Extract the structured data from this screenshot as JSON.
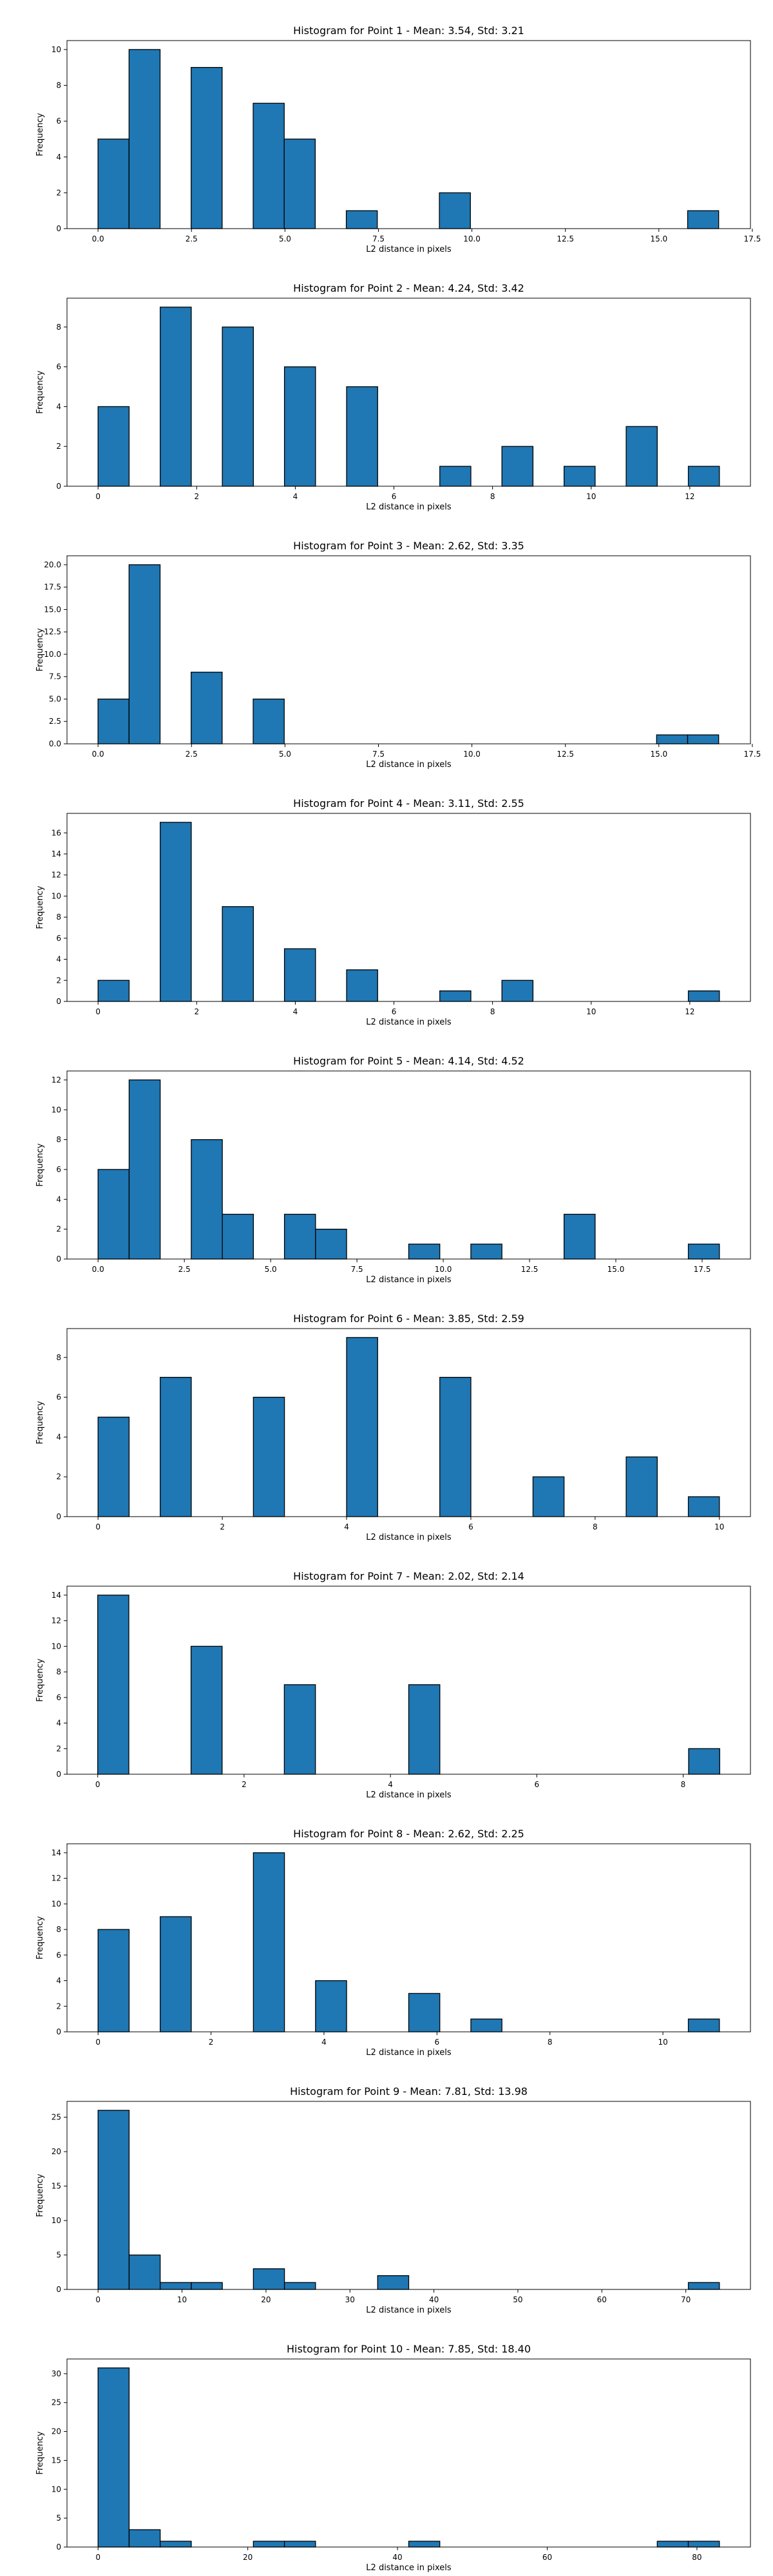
{
  "bar_color": "#1f77b4",
  "edge_color": "#000000",
  "chart_data": [
    {
      "type": "bar",
      "title": "Histogram for Point 1 - Mean: 3.54, Std: 3.21",
      "xlabel": "L2 distance in pixels",
      "ylabel": "Frequency",
      "xlim": [
        -0.83,
        17.45
      ],
      "ylim": [
        0,
        10.5
      ],
      "xticks": [
        0.0,
        2.5,
        5.0,
        7.5,
        10.0,
        12.5,
        15.0,
        17.5
      ],
      "xtick_labels": [
        "0.0",
        "2.5",
        "5.0",
        "7.5",
        "10.0",
        "12.5",
        "15.0",
        "17.5"
      ],
      "yticks": [
        0,
        2,
        4,
        6,
        8,
        10
      ],
      "ytick_labels": [
        "0",
        "2",
        "4",
        "6",
        "8",
        "10"
      ],
      "bars": [
        {
          "x0": 0.0,
          "x1": 0.83,
          "value": 5
        },
        {
          "x0": 0.83,
          "x1": 1.66,
          "value": 10
        },
        {
          "x0": 2.49,
          "x1": 3.32,
          "value": 9
        },
        {
          "x0": 4.15,
          "x1": 4.98,
          "value": 7
        },
        {
          "x0": 4.98,
          "x1": 5.81,
          "value": 5
        },
        {
          "x0": 6.64,
          "x1": 7.47,
          "value": 1
        },
        {
          "x0": 9.13,
          "x1": 9.96,
          "value": 2
        },
        {
          "x0": 15.77,
          "x1": 16.6,
          "value": 1
        }
      ]
    },
    {
      "type": "bar",
      "title": "Histogram for Point 2 - Mean: 4.24, Std: 3.42",
      "xlabel": "L2 distance in pixels",
      "ylabel": "Frequency",
      "xlim": [
        -0.63,
        13.23
      ],
      "ylim": [
        0,
        9.45
      ],
      "xticks": [
        0,
        2,
        4,
        6,
        8,
        10,
        12
      ],
      "xtick_labels": [
        "0",
        "2",
        "4",
        "6",
        "8",
        "10",
        "12"
      ],
      "yticks": [
        0,
        2,
        4,
        6,
        8
      ],
      "ytick_labels": [
        "0",
        "2",
        "4",
        "6",
        "8"
      ],
      "bars": [
        {
          "x0": 0.0,
          "x1": 0.63,
          "value": 4
        },
        {
          "x0": 1.26,
          "x1": 1.89,
          "value": 9
        },
        {
          "x0": 2.52,
          "x1": 3.15,
          "value": 8
        },
        {
          "x0": 3.78,
          "x1": 4.41,
          "value": 6
        },
        {
          "x0": 5.04,
          "x1": 5.67,
          "value": 5
        },
        {
          "x0": 6.93,
          "x1": 7.56,
          "value": 1
        },
        {
          "x0": 8.19,
          "x1": 8.82,
          "value": 2
        },
        {
          "x0": 9.45,
          "x1": 10.08,
          "value": 1
        },
        {
          "x0": 10.71,
          "x1": 11.34,
          "value": 3
        },
        {
          "x0": 11.97,
          "x1": 12.6,
          "value": 1
        }
      ]
    },
    {
      "type": "bar",
      "title": "Histogram for Point 3 - Mean: 2.62, Std: 3.35",
      "xlabel": "L2 distance in pixels",
      "ylabel": "Frequency",
      "xlim": [
        -0.83,
        17.45
      ],
      "ylim": [
        0,
        21
      ],
      "xticks": [
        0.0,
        2.5,
        5.0,
        7.5,
        10.0,
        12.5,
        15.0,
        17.5
      ],
      "xtick_labels": [
        "0.0",
        "2.5",
        "5.0",
        "7.5",
        "10.0",
        "12.5",
        "15.0",
        "17.5"
      ],
      "yticks": [
        0,
        2.5,
        5,
        7.5,
        10,
        12.5,
        15,
        17.5,
        20
      ],
      "ytick_labels": [
        "0.0",
        "2.5",
        "5.0",
        "7.5",
        "10.0",
        "12.5",
        "15.0",
        "17.5",
        "20.0"
      ],
      "bars": [
        {
          "x0": 0.0,
          "x1": 0.83,
          "value": 5
        },
        {
          "x0": 0.83,
          "x1": 1.66,
          "value": 20
        },
        {
          "x0": 2.49,
          "x1": 3.32,
          "value": 8
        },
        {
          "x0": 4.15,
          "x1": 4.98,
          "value": 5
        },
        {
          "x0": 14.94,
          "x1": 15.77,
          "value": 1
        },
        {
          "x0": 15.77,
          "x1": 16.6,
          "value": 1
        }
      ]
    },
    {
      "type": "bar",
      "title": "Histogram for Point 4 - Mean: 3.11, Std: 2.55",
      "xlabel": "L2 distance in pixels",
      "ylabel": "Frequency",
      "xlim": [
        -0.63,
        13.23
      ],
      "ylim": [
        0,
        17.85
      ],
      "xticks": [
        0,
        2,
        4,
        6,
        8,
        10,
        12
      ],
      "xtick_labels": [
        "0",
        "2",
        "4",
        "6",
        "8",
        "10",
        "12"
      ],
      "yticks": [
        0,
        2,
        4,
        6,
        8,
        10,
        12,
        14,
        16
      ],
      "ytick_labels": [
        "0",
        "2",
        "4",
        "6",
        "8",
        "10",
        "12",
        "14",
        "16"
      ],
      "bars": [
        {
          "x0": 0.0,
          "x1": 0.63,
          "value": 2
        },
        {
          "x0": 1.26,
          "x1": 1.89,
          "value": 17
        },
        {
          "x0": 2.52,
          "x1": 3.15,
          "value": 9
        },
        {
          "x0": 3.78,
          "x1": 4.41,
          "value": 5
        },
        {
          "x0": 5.04,
          "x1": 5.67,
          "value": 3
        },
        {
          "x0": 6.93,
          "x1": 7.56,
          "value": 1
        },
        {
          "x0": 8.19,
          "x1": 8.82,
          "value": 2
        },
        {
          "x0": 11.97,
          "x1": 12.6,
          "value": 1
        }
      ]
    },
    {
      "type": "bar",
      "title": "Histogram for Point 5 - Mean: 4.14, Std: 4.52",
      "xlabel": "L2 distance in pixels",
      "ylabel": "Frequency",
      "xlim": [
        -0.9,
        18.9
      ],
      "ylim": [
        0,
        12.6
      ],
      "xticks": [
        0.0,
        2.5,
        5.0,
        7.5,
        10.0,
        12.5,
        15.0,
        17.5
      ],
      "xtick_labels": [
        "0.0",
        "2.5",
        "5.0",
        "7.5",
        "10.0",
        "12.5",
        "15.0",
        "17.5"
      ],
      "yticks": [
        0,
        2,
        4,
        6,
        8,
        10,
        12
      ],
      "ytick_labels": [
        "0",
        "2",
        "4",
        "6",
        "8",
        "10",
        "12"
      ],
      "bars": [
        {
          "x0": 0.0,
          "x1": 0.9,
          "value": 6
        },
        {
          "x0": 0.9,
          "x1": 1.8,
          "value": 12
        },
        {
          "x0": 2.7,
          "x1": 3.6,
          "value": 8
        },
        {
          "x0": 3.6,
          "x1": 4.5,
          "value": 3
        },
        {
          "x0": 5.4,
          "x1": 6.3,
          "value": 3
        },
        {
          "x0": 6.3,
          "x1": 7.2,
          "value": 2
        },
        {
          "x0": 9.0,
          "x1": 9.9,
          "value": 1
        },
        {
          "x0": 10.8,
          "x1": 11.7,
          "value": 1
        },
        {
          "x0": 13.5,
          "x1": 14.4,
          "value": 3
        },
        {
          "x0": 17.1,
          "x1": 18.0,
          "value": 1
        }
      ]
    },
    {
      "type": "bar",
      "title": "Histogram for Point 6 - Mean: 3.85, Std: 2.59",
      "xlabel": "L2 distance in pixels",
      "ylabel": "Frequency",
      "xlim": [
        -0.5,
        10.5
      ],
      "ylim": [
        0,
        9.45
      ],
      "xticks": [
        0,
        2,
        4,
        6,
        8,
        10
      ],
      "xtick_labels": [
        "0",
        "2",
        "4",
        "6",
        "8",
        "10"
      ],
      "yticks": [
        0,
        2,
        4,
        6,
        8
      ],
      "ytick_labels": [
        "0",
        "2",
        "4",
        "6",
        "8"
      ],
      "bars": [
        {
          "x0": 0.0,
          "x1": 0.5,
          "value": 5
        },
        {
          "x0": 1.0,
          "x1": 1.5,
          "value": 7
        },
        {
          "x0": 2.5,
          "x1": 3.0,
          "value": 6
        },
        {
          "x0": 4.0,
          "x1": 4.5,
          "value": 9
        },
        {
          "x0": 5.5,
          "x1": 6.0,
          "value": 7
        },
        {
          "x0": 7.0,
          "x1": 7.5,
          "value": 2
        },
        {
          "x0": 8.5,
          "x1": 9.0,
          "value": 3
        },
        {
          "x0": 9.5,
          "x1": 10.0,
          "value": 1
        }
      ]
    },
    {
      "type": "bar",
      "title": "Histogram for Point 7 - Mean: 2.02, Std: 2.14",
      "xlabel": "L2 distance in pixels",
      "ylabel": "Frequency",
      "xlim": [
        -0.42,
        8.92
      ],
      "ylim": [
        0,
        14.7
      ],
      "xticks": [
        0,
        2,
        4,
        6,
        8
      ],
      "xtick_labels": [
        "0",
        "2",
        "4",
        "6",
        "8"
      ],
      "yticks": [
        0,
        2,
        4,
        6,
        8,
        10,
        12,
        14
      ],
      "ytick_labels": [
        "0",
        "2",
        "4",
        "6",
        "8",
        "10",
        "12",
        "14"
      ],
      "bars": [
        {
          "x0": 0.0,
          "x1": 0.425,
          "value": 14
        },
        {
          "x0": 1.275,
          "x1": 1.7,
          "value": 10
        },
        {
          "x0": 2.55,
          "x1": 2.975,
          "value": 7
        },
        {
          "x0": 4.25,
          "x1": 4.675,
          "value": 7
        },
        {
          "x0": 8.075,
          "x1": 8.5,
          "value": 2
        }
      ]
    },
    {
      "type": "bar",
      "title": "Histogram for Point 8 - Mean: 2.62, Std: 2.25",
      "xlabel": "L2 distance in pixels",
      "ylabel": "Frequency",
      "xlim": [
        -0.55,
        11.55
      ],
      "ylim": [
        0,
        14.7
      ],
      "xticks": [
        0,
        2,
        4,
        6,
        8,
        10
      ],
      "xtick_labels": [
        "0",
        "2",
        "4",
        "6",
        "8",
        "10"
      ],
      "yticks": [
        0,
        2,
        4,
        6,
        8,
        10,
        12,
        14
      ],
      "ytick_labels": [
        "0",
        "2",
        "4",
        "6",
        "8",
        "10",
        "12",
        "14"
      ],
      "bars": [
        {
          "x0": 0.0,
          "x1": 0.55,
          "value": 8
        },
        {
          "x0": 1.1,
          "x1": 1.65,
          "value": 9
        },
        {
          "x0": 2.75,
          "x1": 3.3,
          "value": 14
        },
        {
          "x0": 3.85,
          "x1": 4.4,
          "value": 4
        },
        {
          "x0": 5.5,
          "x1": 6.05,
          "value": 3
        },
        {
          "x0": 6.6,
          "x1": 7.15,
          "value": 1
        },
        {
          "x0": 10.45,
          "x1": 11.0,
          "value": 1
        }
      ]
    },
    {
      "type": "bar",
      "title": "Histogram for Point 9 - Mean: 7.81, Std: 13.98",
      "xlabel": "L2 distance in pixels",
      "ylabel": "Frequency",
      "xlim": [
        -3.7,
        77.7
      ],
      "ylim": [
        0,
        27.3
      ],
      "xticks": [
        0,
        10,
        20,
        30,
        40,
        50,
        60,
        70
      ],
      "xtick_labels": [
        "0",
        "10",
        "20",
        "30",
        "40",
        "50",
        "60",
        "70"
      ],
      "yticks": [
        0,
        5,
        10,
        15,
        20,
        25
      ],
      "ytick_labels": [
        "0",
        "5",
        "10",
        "15",
        "20",
        "25"
      ],
      "bars": [
        {
          "x0": 0.0,
          "x1": 3.7,
          "value": 26
        },
        {
          "x0": 3.7,
          "x1": 7.4,
          "value": 5
        },
        {
          "x0": 7.4,
          "x1": 11.1,
          "value": 1
        },
        {
          "x0": 11.1,
          "x1": 14.8,
          "value": 1
        },
        {
          "x0": 18.5,
          "x1": 22.2,
          "value": 3
        },
        {
          "x0": 22.2,
          "x1": 25.9,
          "value": 1
        },
        {
          "x0": 33.3,
          "x1": 37.0,
          "value": 2
        },
        {
          "x0": 70.3,
          "x1": 74.0,
          "value": 1
        }
      ]
    },
    {
      "type": "bar",
      "title": "Histogram for Point 10 - Mean: 7.85, Std: 18.40",
      "xlabel": "L2 distance in pixels",
      "ylabel": "Frequency",
      "xlim": [
        -4.15,
        87.15
      ],
      "ylim": [
        0,
        32.55
      ],
      "xticks": [
        0,
        20,
        40,
        60,
        80
      ],
      "xtick_labels": [
        "0",
        "20",
        "40",
        "60",
        "80"
      ],
      "yticks": [
        0,
        5,
        10,
        15,
        20,
        25,
        30
      ],
      "ytick_labels": [
        "0",
        "5",
        "10",
        "15",
        "20",
        "25",
        "30"
      ],
      "bars": [
        {
          "x0": 0.0,
          "x1": 4.15,
          "value": 31
        },
        {
          "x0": 4.15,
          "x1": 8.3,
          "value": 3
        },
        {
          "x0": 8.3,
          "x1": 12.45,
          "value": 1
        },
        {
          "x0": 20.75,
          "x1": 24.9,
          "value": 1
        },
        {
          "x0": 24.9,
          "x1": 29.05,
          "value": 1
        },
        {
          "x0": 41.5,
          "x1": 45.65,
          "value": 1
        },
        {
          "x0": 74.7,
          "x1": 78.85,
          "value": 1
        },
        {
          "x0": 78.85,
          "x1": 83.0,
          "value": 1
        }
      ]
    }
  ]
}
